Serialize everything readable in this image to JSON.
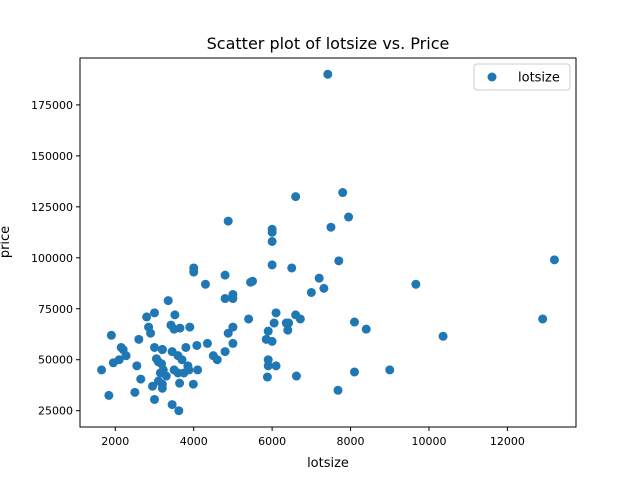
{
  "chart_data": {
    "type": "scatter",
    "title": "Scatter plot of lotsize vs. Price",
    "xlabel": "lotsize",
    "ylabel": "price",
    "xlim": [
      1100,
      13750
    ],
    "ylim": [
      17000,
      198000
    ],
    "xticks": [
      2000,
      4000,
      6000,
      8000,
      10000,
      12000
    ],
    "xtick_labels": [
      "2000",
      "4000",
      "6000",
      "8000",
      "10000",
      "12000"
    ],
    "yticks": [
      25000,
      50000,
      75000,
      100000,
      125000,
      150000,
      175000
    ],
    "ytick_labels": [
      "25000",
      "50000",
      "75000",
      "100000",
      "125000",
      "150000",
      "175000"
    ],
    "grid": false,
    "legend": {
      "position": "top-right",
      "entries": [
        "lotsize"
      ]
    },
    "marker_color": "#1f77b4",
    "series": [
      {
        "name": "lotsize",
        "points": [
          [
            1650,
            45000
          ],
          [
            1836,
            32500
          ],
          [
            1900,
            62000
          ],
          [
            1950,
            48500
          ],
          [
            2100,
            50000
          ],
          [
            2150,
            56000
          ],
          [
            2200,
            55000
          ],
          [
            2275,
            52000
          ],
          [
            2500,
            34000
          ],
          [
            2550,
            47000
          ],
          [
            2600,
            60000
          ],
          [
            2650,
            40500
          ],
          [
            2800,
            71000
          ],
          [
            2850,
            66000
          ],
          [
            2900,
            63000
          ],
          [
            2950,
            37000
          ],
          [
            3000,
            30500
          ],
          [
            3000,
            56000
          ],
          [
            3000,
            73000
          ],
          [
            3050,
            50500
          ],
          [
            3100,
            39500
          ],
          [
            3100,
            49000
          ],
          [
            3150,
            43500
          ],
          [
            3180,
            48000
          ],
          [
            3200,
            55000
          ],
          [
            3200,
            55000
          ],
          [
            3200,
            38000
          ],
          [
            3200,
            36000
          ],
          [
            3225,
            45000
          ],
          [
            3300,
            42000
          ],
          [
            3350,
            79000
          ],
          [
            3420,
            67000
          ],
          [
            3450,
            54000
          ],
          [
            3450,
            28000
          ],
          [
            3500,
            45000
          ],
          [
            3500,
            65000
          ],
          [
            3520,
            72000
          ],
          [
            3600,
            52000
          ],
          [
            3600,
            43500
          ],
          [
            3620,
            25000
          ],
          [
            3640,
            38500
          ],
          [
            3650,
            65500
          ],
          [
            3700,
            50000
          ],
          [
            3750,
            43500
          ],
          [
            3800,
            56000
          ],
          [
            3850,
            47000
          ],
          [
            3880,
            45000
          ],
          [
            3900,
            66000
          ],
          [
            3990,
            38000
          ],
          [
            4000,
            93000
          ],
          [
            4000,
            95000
          ],
          [
            4080,
            57000
          ],
          [
            4100,
            45000
          ],
          [
            4300,
            87000
          ],
          [
            4350,
            58000
          ],
          [
            4500,
            52000
          ],
          [
            4600,
            50000
          ],
          [
            4800,
            54000
          ],
          [
            4800,
            80000
          ],
          [
            4800,
            91500
          ],
          [
            4880,
            118000
          ],
          [
            4880,
            63000
          ],
          [
            5000,
            80000
          ],
          [
            5000,
            82000
          ],
          [
            5000,
            58000
          ],
          [
            5000,
            66000
          ],
          [
            5400,
            70000
          ],
          [
            5450,
            88000
          ],
          [
            5500,
            88500
          ],
          [
            5850,
            60000
          ],
          [
            5880,
            41500
          ],
          [
            5900,
            50000
          ],
          [
            5900,
            47000
          ],
          [
            5900,
            64000
          ],
          [
            6000,
            59000
          ],
          [
            6000,
            96500
          ],
          [
            6000,
            108000
          ],
          [
            6000,
            112500
          ],
          [
            6000,
            114000
          ],
          [
            6050,
            68000
          ],
          [
            6100,
            47000
          ],
          [
            6100,
            73000
          ],
          [
            6360,
            68000
          ],
          [
            6400,
            64500
          ],
          [
            6420,
            68000
          ],
          [
            6500,
            95000
          ],
          [
            6600,
            72000
          ],
          [
            6600,
            130000
          ],
          [
            6620,
            42000
          ],
          [
            6720,
            70000
          ],
          [
            7000,
            83000
          ],
          [
            7200,
            90000
          ],
          [
            7320,
            85000
          ],
          [
            7420,
            190000
          ],
          [
            7500,
            115000
          ],
          [
            7680,
            35000
          ],
          [
            7700,
            98500
          ],
          [
            7800,
            132000
          ],
          [
            7950,
            120000
          ],
          [
            8100,
            44000
          ],
          [
            8100,
            68500
          ],
          [
            8400,
            65000
          ],
          [
            9000,
            45000
          ],
          [
            9666,
            87000
          ],
          [
            10360,
            61500
          ],
          [
            12900,
            70000
          ],
          [
            13200,
            99000
          ]
        ]
      }
    ]
  }
}
